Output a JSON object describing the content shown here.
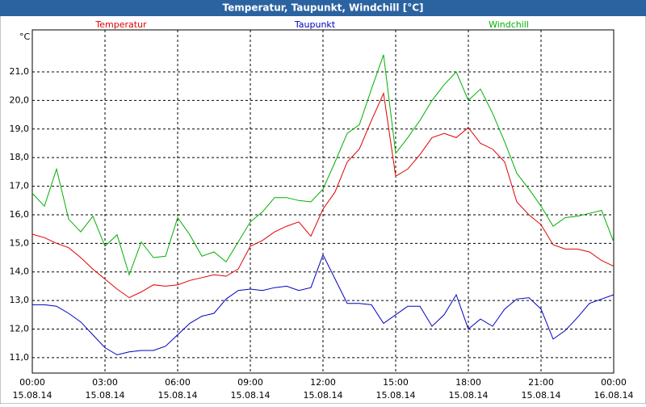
{
  "chart_data": {
    "type": "line",
    "title": "Temperatur, Taupunkt, Windchill [°C]",
    "y_label": "°C",
    "x": [
      0,
      0.5,
      1,
      1.5,
      2,
      2.5,
      3,
      3.5,
      4,
      4.5,
      5,
      5.5,
      6,
      6.5,
      7,
      7.5,
      8,
      8.5,
      9,
      9.5,
      10,
      10.5,
      11,
      11.5,
      12,
      12.5,
      13,
      13.5,
      14,
      14.5,
      15,
      15.5,
      16,
      16.5,
      17,
      17.5,
      18,
      18.5,
      19,
      19.5,
      20,
      20.5,
      21,
      21.5,
      22,
      22.5,
      23,
      23.5,
      24
    ],
    "series": [
      {
        "name": "Temperatur",
        "color": "#e00000",
        "values": [
          15.32,
          15.2,
          15.0,
          14.85,
          14.5,
          14.1,
          13.75,
          13.4,
          13.1,
          13.3,
          13.55,
          13.5,
          13.55,
          13.7,
          13.8,
          13.9,
          13.85,
          14.1,
          14.9,
          15.1,
          15.4,
          15.6,
          15.75,
          15.25,
          16.2,
          16.8,
          17.85,
          18.3,
          19.3,
          20.25,
          17.35,
          17.6,
          18.1,
          18.7,
          18.85,
          18.7,
          19.05,
          18.5,
          18.3,
          17.85,
          16.45,
          16.0,
          15.65,
          14.95,
          14.8,
          14.8,
          14.7,
          14.4,
          14.2
        ]
      },
      {
        "name": "Taupunkt",
        "color": "#0000c0",
        "values": [
          12.85,
          12.85,
          12.8,
          12.55,
          12.25,
          11.8,
          11.35,
          11.1,
          11.2,
          11.25,
          11.25,
          11.4,
          11.8,
          12.2,
          12.45,
          12.55,
          13.05,
          13.35,
          13.4,
          13.35,
          13.45,
          13.5,
          13.35,
          13.45,
          14.6,
          13.75,
          12.9,
          12.9,
          12.85,
          12.2,
          12.5,
          12.8,
          12.8,
          12.1,
          12.5,
          13.2,
          12.0,
          12.35,
          12.1,
          12.7,
          13.05,
          13.1,
          12.7,
          11.65,
          11.95,
          12.4,
          12.9,
          13.05,
          13.2
        ]
      },
      {
        "name": "Windchill",
        "color": "#00b000",
        "values": [
          16.75,
          16.3,
          17.6,
          15.85,
          15.4,
          15.95,
          14.9,
          15.3,
          13.9,
          15.05,
          14.5,
          14.55,
          15.9,
          15.3,
          14.55,
          14.7,
          14.35,
          15.05,
          15.75,
          16.1,
          16.6,
          16.6,
          16.5,
          16.45,
          16.9,
          17.85,
          18.85,
          19.15,
          20.4,
          21.6,
          18.15,
          18.7,
          19.3,
          20.0,
          20.55,
          21.0,
          20.0,
          20.4,
          19.55,
          18.55,
          17.45,
          16.9,
          16.3,
          15.6,
          15.9,
          15.95,
          16.05,
          16.15,
          15.05
        ]
      }
    ],
    "xlim": [
      0,
      24
    ],
    "xticks": [
      {
        "value": 0,
        "label": "00:00",
        "date": "15.08.14"
      },
      {
        "value": 3,
        "label": "03:00",
        "date": "15.08.14"
      },
      {
        "value": 6,
        "label": "06:00",
        "date": "15.08.14"
      },
      {
        "value": 9,
        "label": "09:00",
        "date": "15.08.14"
      },
      {
        "value": 12,
        "label": "12:00",
        "date": "15.08.14"
      },
      {
        "value": 15,
        "label": "15:00",
        "date": "15.08.14"
      },
      {
        "value": 18,
        "label": "18:00",
        "date": "15.08.14"
      },
      {
        "value": 21,
        "label": "21:00",
        "date": "15.08.14"
      },
      {
        "value": 24,
        "label": "00:00",
        "date": "16.08.14"
      }
    ],
    "ylim": [
      10.46,
      22.47
    ],
    "yticks": [
      {
        "value": 11,
        "label": "11,0"
      },
      {
        "value": 12,
        "label": "12,0"
      },
      {
        "value": 13,
        "label": "13,0"
      },
      {
        "value": 14,
        "label": "14,0"
      },
      {
        "value": 15,
        "label": "15,0"
      },
      {
        "value": 16,
        "label": "16,0"
      },
      {
        "value": 17,
        "label": "17,0"
      },
      {
        "value": 18,
        "label": "18,0"
      },
      {
        "value": 19,
        "label": "19,0"
      },
      {
        "value": 20,
        "label": "20,0"
      },
      {
        "value": 21,
        "label": "21,0"
      }
    ],
    "grid": true
  }
}
